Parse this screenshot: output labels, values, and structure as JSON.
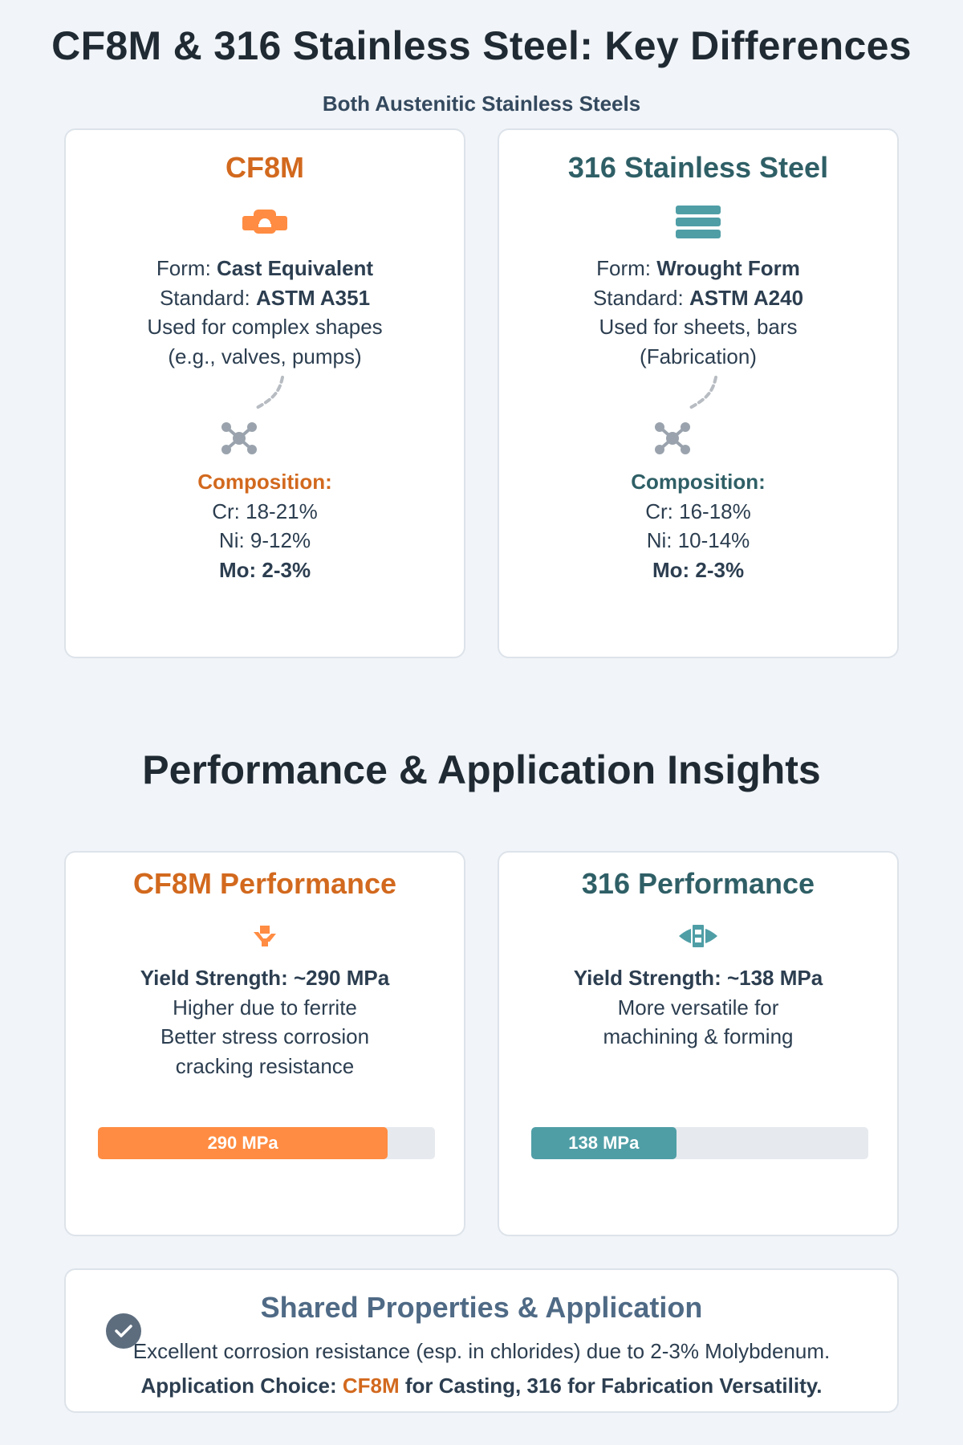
{
  "header": {
    "title": "CF8M & 316 Stainless Steel: Key Differences",
    "subtitle": "Both Austenitic Stainless Steels"
  },
  "cf8m_card": {
    "title": "CF8M",
    "icon": "cast-part-icon",
    "form_label": "Form: ",
    "form_value": "Cast Equivalent",
    "standard_label": "Standard: ",
    "standard_value": "ASTM A351",
    "usage_line1": "Used for complex shapes",
    "usage_line2": "(e.g., valves, pumps)",
    "composition_heading": "Composition:",
    "cr": "Cr: 18-21%",
    "ni": "Ni: 9-12%",
    "mo": "Mo: 2-3%"
  },
  "ss316_card": {
    "title": "316 Stainless Steel",
    "icon": "stacked-sheets-icon",
    "form_label": "Form: ",
    "form_value": "Wrought Form",
    "standard_label": "Standard: ",
    "standard_value": "ASTM A240",
    "usage_line1": "Used for sheets, bars",
    "usage_line2": "(Fabrication)",
    "composition_heading": "Composition:",
    "cr": "Cr: 16-18%",
    "ni": "Ni: 10-14%",
    "mo": "Mo: 2-3%"
  },
  "section": {
    "title": "Performance & Application Insights"
  },
  "cf8m_perf": {
    "title": "CF8M Performance",
    "yield": "Yield Strength: ~290 MPa",
    "line1": "Higher due to ferrite",
    "line2": "Better stress corrosion",
    "line3": "cracking resistance",
    "bar_label": "290 MPa",
    "bar_fraction": 0.86,
    "bar_color": "#ff8c42"
  },
  "ss316_perf": {
    "title": "316 Performance",
    "yield": "Yield Strength: ~138 MPa",
    "line1": "More versatile for",
    "line2": "machining & forming",
    "bar_label": "138 MPa",
    "bar_fraction": 0.43,
    "bar_color": "#4f9ea6"
  },
  "shared": {
    "title": "Shared Properties & Application",
    "line1": "Excellent corrosion resistance (esp. in chlorides) due to 2-3% Molybdenum.",
    "choice_prefix": "Application Choice: ",
    "choice_cf8m": "CF8M",
    "choice_suffix": " for Casting, 316 for Fabrication Versatility."
  },
  "colors": {
    "orange": "#ff8c42",
    "teal": "#4f9ea6",
    "orange_text": "#d2691e",
    "teal_text": "#2f5f66"
  }
}
